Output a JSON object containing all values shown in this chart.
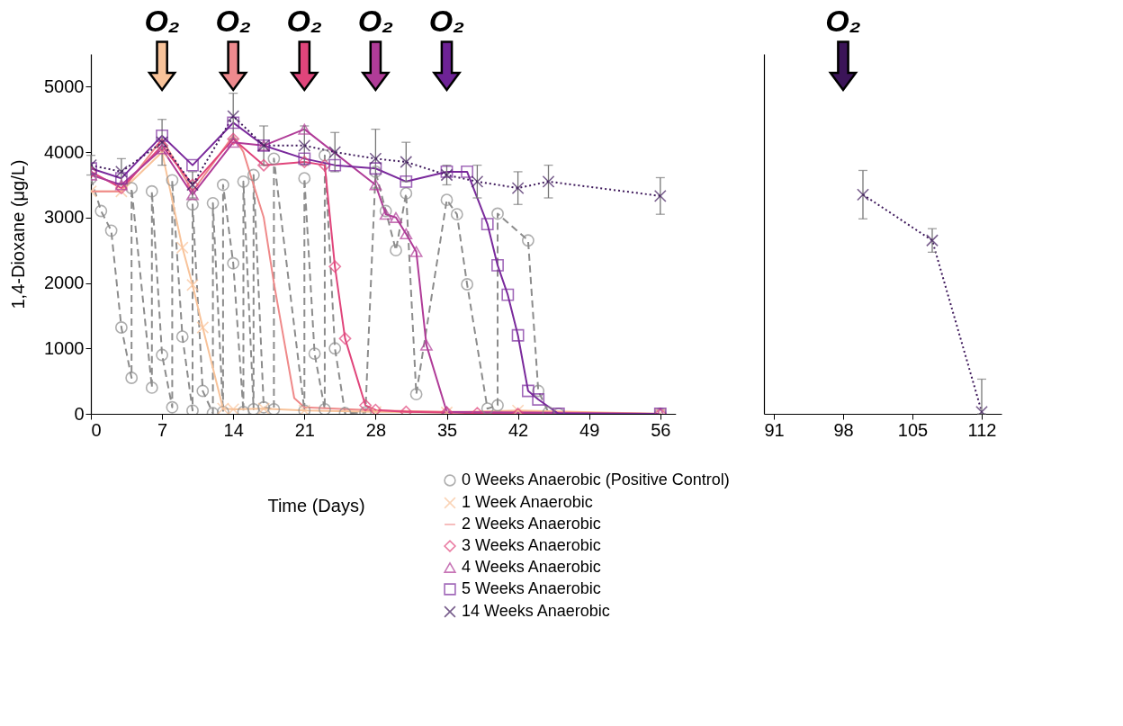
{
  "chart_data": [
    {
      "type": "line",
      "xlabel": "Time (Days)",
      "ylabel": "1,4-Dioxane (μg/L)",
      "xlim": [
        0,
        57.5
      ],
      "ylim": [
        0,
        5500
      ],
      "xticks": [
        0,
        7,
        14,
        21,
        28,
        35,
        42,
        49,
        56
      ],
      "yticks": [
        0,
        1000,
        2000,
        3000,
        4000,
        5000
      ],
      "grid": false,
      "legend": "bottom",
      "annotations": [
        "O₂",
        "O₂",
        "O₂",
        "O₂",
        "O₂"
      ],
      "series": [
        {
          "name": "0 Weeks Anaerobic (Positive Control)",
          "color": "#8c8c8c",
          "marker": "circle",
          "line_style": "dashed",
          "x": [
            0,
            1,
            2,
            3,
            4,
            4,
            6,
            6,
            7,
            8,
            8,
            9,
            10,
            10,
            11,
            12,
            12,
            13,
            13,
            14,
            15,
            15,
            16,
            16,
            17,
            18,
            18,
            21,
            21,
            22,
            23,
            23,
            24,
            25,
            27,
            28,
            29,
            30,
            31,
            32,
            35,
            36,
            37,
            39,
            40,
            40,
            43,
            44,
            45,
            46,
            56
          ],
          "values": [
            3600,
            3100,
            2800,
            1320,
            550,
            3450,
            400,
            3400,
            900,
            100,
            3570,
            1180,
            50,
            3200,
            350,
            10,
            3220,
            30,
            3500,
            2300,
            30,
            3550,
            70,
            3650,
            100,
            70,
            3900,
            50,
            3600,
            920,
            70,
            3950,
            1000,
            10,
            20,
            3700,
            3100,
            2500,
            3370,
            300,
            3270,
            3050,
            1980,
            80,
            130,
            3060,
            2650,
            350,
            20,
            0,
            0
          ]
        },
        {
          "name": "1 Week Anaerobic",
          "color": "#f8c39a",
          "marker": "cross",
          "line_style": "solid",
          "x": [
            0,
            3,
            7,
            9,
            10,
            11,
            13,
            14,
            17,
            21,
            28,
            35,
            42,
            56
          ],
          "values": [
            3400,
            3400,
            4000,
            2540,
            1970,
            1320,
            80,
            70,
            80,
            50,
            30,
            20,
            50,
            0
          ]
        },
        {
          "name": "2 Weeks Anaerobic",
          "color": "#ef8a8a",
          "marker": "none",
          "line_style": "solid",
          "x": [
            0,
            3,
            7,
            10,
            14,
            15,
            17,
            18,
            20,
            21,
            28,
            35,
            42,
            56
          ],
          "values": [
            3400,
            3400,
            4200,
            3400,
            4250,
            4000,
            3000,
            2000,
            240,
            100,
            50,
            30,
            30,
            0
          ]
        },
        {
          "name": "3 Weeks Anaerobic",
          "color": "#e0457b",
          "marker": "diamond",
          "line_style": "solid",
          "x": [
            0,
            3,
            7,
            10,
            14,
            17,
            21,
            23,
            24,
            25,
            27,
            28,
            31,
            35,
            38,
            42,
            56
          ],
          "values": [
            3700,
            3450,
            4100,
            3500,
            4200,
            3800,
            3850,
            3800,
            2250,
            1150,
            130,
            60,
            30,
            20,
            10,
            0,
            0
          ]
        },
        {
          "name": "4 Weeks Anaerobic",
          "color": "#b03c98",
          "marker": "triangle",
          "line_style": "solid",
          "x": [
            0,
            3,
            7,
            10,
            14,
            17,
            21,
            28,
            29,
            30,
            31,
            32,
            33,
            35,
            56
          ],
          "values": [
            3650,
            3500,
            4050,
            3350,
            4150,
            4100,
            4350,
            3500,
            3050,
            3000,
            2750,
            2480,
            1050,
            30,
            0
          ]
        },
        {
          "name": "5 Weeks Anaerobic",
          "color": "#7a2a9c",
          "marker": "square",
          "line_style": "solid",
          "x": [
            0,
            3,
            7,
            10,
            14,
            17,
            21,
            24,
            28,
            31,
            35,
            37,
            39,
            40,
            41,
            42,
            43,
            44,
            46,
            56
          ],
          "values": [
            3750,
            3600,
            4250,
            3800,
            4450,
            4100,
            3900,
            3800,
            3750,
            3550,
            3700,
            3700,
            2900,
            2270,
            1820,
            1200,
            350,
            220,
            0,
            0
          ]
        },
        {
          "name": "14 Weeks Anaerobic",
          "color": "#3f1a5c",
          "marker": "cross",
          "line_style": "dotted",
          "x": [
            0,
            3,
            7,
            10,
            14,
            17,
            21,
            24,
            28,
            31,
            35,
            38,
            42,
            45,
            56
          ],
          "values": [
            3800,
            3700,
            4150,
            3500,
            4550,
            4100,
            4100,
            4000,
            3900,
            3850,
            3650,
            3550,
            3450,
            3550,
            3330
          ],
          "errors": [
            150,
            200,
            350,
            200,
            350,
            300,
            300,
            300,
            450,
            300,
            150,
            250,
            250,
            250,
            280
          ]
        }
      ]
    },
    {
      "type": "line",
      "xlim": [
        90,
        114
      ],
      "ylim": [
        0,
        5500
      ],
      "xticks": [
        91,
        98,
        105,
        112
      ],
      "yticks": [
        0,
        1000,
        2000,
        3000,
        4000,
        5000
      ],
      "tick_labels": "x",
      "grid": false,
      "annotations": [
        "O₂"
      ],
      "series": [
        {
          "color": "#3f1a5c",
          "marker": "cross",
          "line_style": "dotted",
          "x": [
            100,
            107,
            112
          ],
          "values": [
            3350,
            2650,
            30
          ],
          "errors": [
            370,
            180,
            [
              0,
              530
            ]
          ]
        }
      ]
    }
  ]
}
